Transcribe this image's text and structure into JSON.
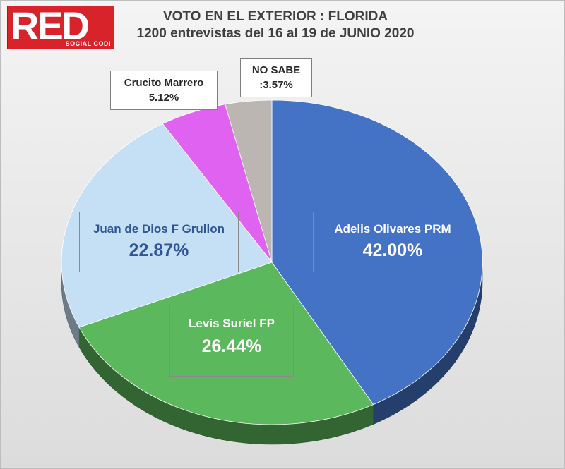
{
  "logo": {
    "text": "RED",
    "subtext": "SOCIAL CODI"
  },
  "header": {
    "title_line1": "VOTO EN EL EXTERIOR : FLORIDA",
    "title_line2": "1200 entrevistas  del 16 al 19 de JUNIO 2020"
  },
  "chart_data": {
    "type": "pie",
    "title": "VOTO EN EL EXTERIOR : FLORIDA",
    "subtitle": "1200 entrevistas  del 16 al 19 de JUNIO 2020",
    "slices": [
      {
        "label": "Adelis Olivares PRM",
        "value": 42.0,
        "value_text": "42.00%",
        "color": "#4472c4"
      },
      {
        "label": "Levis Suriel FP",
        "value": 26.44,
        "value_text": "26.44%",
        "color": "#5cb85c"
      },
      {
        "label": "Juan de Dios F Grullon",
        "value": 22.87,
        "value_text": "22.87%",
        "color": "#c5e0f4"
      },
      {
        "label": "Crucito Marrero",
        "value": 5.12,
        "value_text": "5.12%",
        "color": "#e062f0"
      },
      {
        "label": "NO SABE",
        "value": 3.57,
        "value_text": ":3.57%",
        "color": "#bcb6b2"
      }
    ],
    "legend": "none",
    "style": "3d-tilted"
  }
}
